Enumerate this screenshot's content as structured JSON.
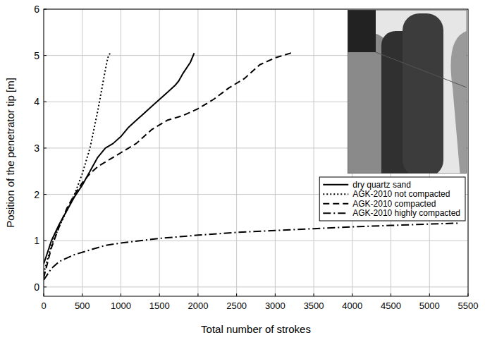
{
  "chart_data": {
    "type": "line",
    "x_label": "Total number of strokes",
    "y_label": "Position of the penetrator tip [m]",
    "xlim": [
      0,
      5500
    ],
    "ylim": [
      -0.2,
      6
    ],
    "xticks": [
      0,
      500,
      1000,
      1500,
      2000,
      2500,
      3000,
      3500,
      4000,
      4500,
      5000,
      5500
    ],
    "yticks": [
      0,
      1,
      2,
      3,
      4,
      5,
      6
    ],
    "grid": true,
    "legend": "right",
    "series": [
      {
        "name": "dry quartz sand",
        "color": "#000000",
        "line_style": "solid",
        "x": [
          0,
          100,
          200,
          300,
          400,
          500,
          600,
          700,
          800,
          900,
          1000,
          1100,
          1200,
          1300,
          1400,
          1500,
          1600,
          1700,
          1750,
          1800,
          1900,
          1950
        ],
        "values": [
          0.5,
          1.0,
          1.35,
          1.65,
          1.95,
          2.2,
          2.5,
          2.8,
          3.0,
          3.1,
          3.25,
          3.45,
          3.6,
          3.75,
          3.9,
          4.05,
          4.2,
          4.35,
          4.45,
          4.6,
          4.85,
          5.05
        ]
      },
      {
        "name": "AGK-2010 not compacted",
        "color": "#000000",
        "line_style": "dotted",
        "x": [
          0,
          100,
          200,
          300,
          400,
          500,
          600,
          650,
          700,
          750,
          800,
          830,
          860
        ],
        "values": [
          0.3,
          0.9,
          1.3,
          1.65,
          2.0,
          2.45,
          3.0,
          3.4,
          3.8,
          4.25,
          4.7,
          4.95,
          5.05
        ]
      },
      {
        "name": "AGK-2010 compacted",
        "color": "#000000",
        "line_style": "dashed",
        "x": [
          0,
          100,
          200,
          300,
          400,
          500,
          600,
          700,
          800,
          900,
          1000,
          1200,
          1400,
          1600,
          1800,
          2000,
          2200,
          2400,
          2600,
          2800,
          3000,
          3200,
          3250
        ],
        "values": [
          0.2,
          0.85,
          1.3,
          1.7,
          2.0,
          2.25,
          2.45,
          2.6,
          2.7,
          2.8,
          2.9,
          3.1,
          3.4,
          3.6,
          3.7,
          3.85,
          4.05,
          4.3,
          4.5,
          4.8,
          4.95,
          5.05,
          5.05
        ]
      },
      {
        "name": "AGK-2010 highly compacted",
        "color": "#000000",
        "line_style": "dashdot",
        "x": [
          0,
          100,
          200,
          400,
          600,
          800,
          1000,
          1500,
          2000,
          2500,
          3000,
          3500,
          4000,
          4500,
          5000,
          5400
        ],
        "values": [
          0.15,
          0.4,
          0.55,
          0.7,
          0.8,
          0.9,
          0.95,
          1.05,
          1.12,
          1.18,
          1.22,
          1.26,
          1.3,
          1.33,
          1.36,
          1.38
        ]
      }
    ]
  }
}
